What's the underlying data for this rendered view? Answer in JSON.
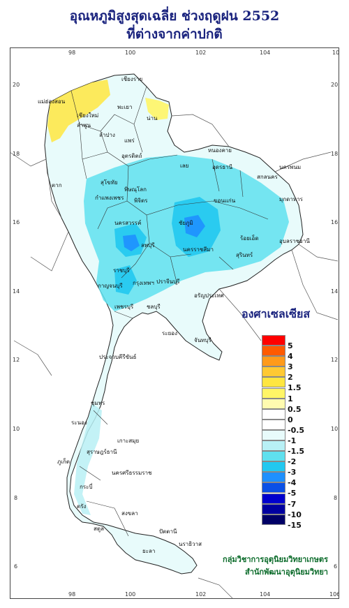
{
  "title_line1": "อุณหภูมิสูงสุดเฉลี่ย ช่วงฤดูฝน 2552",
  "title_line2": "ที่ต่างจากค่าปกติ",
  "unit_label": "องศาเซลเซียส",
  "credit_line1": "กลุ่มวิชาการอุตุนิยมวิทยาเกษตร",
  "credit_line2": "สำนักพัฒนาอุตุนิยมวิทยา",
  "axes": {
    "lon_ticks": [
      "98",
      "100",
      "102",
      "104",
      "106"
    ],
    "lat_ticks": [
      "20",
      "18",
      "16",
      "14",
      "12",
      "10",
      "8",
      "6"
    ]
  },
  "legend": {
    "classes": [
      {
        "label": "5",
        "color": "#ff0000"
      },
      {
        "label": "4",
        "color": "#ff5a00"
      },
      {
        "label": "3",
        "color": "#ff9a1a"
      },
      {
        "label": "2",
        "color": "#ffc933"
      },
      {
        "label": "1.5",
        "color": "#ffe640"
      },
      {
        "label": "1",
        "color": "#fff566"
      },
      {
        "label": "0.5",
        "color": "#fffbb0"
      },
      {
        "label": "0",
        "color": "#ffffff"
      },
      {
        "label": "-0.5",
        "color": "#ffffff"
      },
      {
        "label": "-1",
        "color": "#e8fbfb"
      },
      {
        "label": "-1.5",
        "color": "#b8f0f5"
      },
      {
        "label": "-2",
        "color": "#5fe0ee"
      },
      {
        "label": "-3",
        "color": "#22c8f0"
      },
      {
        "label": "-4",
        "color": "#1e90ff"
      },
      {
        "label": "-5",
        "color": "#0a50e6"
      },
      {
        "label": "-7",
        "color": "#0000cd"
      },
      {
        "label": "-10",
        "color": "#0000a0"
      },
      {
        "label": "-15",
        "color": "#000066"
      }
    ]
  },
  "places": [
    {
      "name": "เชียงราย"
    },
    {
      "name": "เชียงใหม่"
    },
    {
      "name": "แม่ฮ่องสอน"
    },
    {
      "name": "ลำพูน"
    },
    {
      "name": "ลำปาง"
    },
    {
      "name": "พะเยา"
    },
    {
      "name": "น่าน"
    },
    {
      "name": "แพร่"
    },
    {
      "name": "อุตรดิตถ์"
    },
    {
      "name": "ตาก"
    },
    {
      "name": "สุโขทัย"
    },
    {
      "name": "พิษณุโลก"
    },
    {
      "name": "กำแพงเพชร"
    },
    {
      "name": "พิจิตร"
    },
    {
      "name": "เลย"
    },
    {
      "name": "หนองคาย"
    },
    {
      "name": "อุดรธานี"
    },
    {
      "name": "นครพนม"
    },
    {
      "name": "สกลนคร"
    },
    {
      "name": "มุกดาหาร"
    },
    {
      "name": "ขอนแก่น"
    },
    {
      "name": "ชัยภูมิ"
    },
    {
      "name": "นครสวรรค์"
    },
    {
      "name": "ลพบุรี"
    },
    {
      "name": "นครราชสีมา"
    },
    {
      "name": "ร้อยเอ็ด"
    },
    {
      "name": "อุบลราชธานี"
    },
    {
      "name": "สุรินทร์"
    },
    {
      "name": "กาญจนบุรี"
    },
    {
      "name": "ราชบุรี"
    },
    {
      "name": "กรุงเทพฯ"
    },
    {
      "name": "ชลบุรี"
    },
    {
      "name": "ระยอง"
    },
    {
      "name": "จันทบุรี"
    },
    {
      "name": "ปราจีนบุรี"
    },
    {
      "name": "อรัญประเทศ"
    },
    {
      "name": "เพชรบุรี"
    },
    {
      "name": "ประจวบคีรีขันธ์"
    },
    {
      "name": "ชุมพร"
    },
    {
      "name": "ระนอง"
    },
    {
      "name": "สุราษฎร์ธานี"
    },
    {
      "name": "เกาะสมุย"
    },
    {
      "name": "ภูเก็ต"
    },
    {
      "name": "นครศรีธรรมราช"
    },
    {
      "name": "กระบี่"
    },
    {
      "name": "ตรัง"
    },
    {
      "name": "สงขลา"
    },
    {
      "name": "ปัตตานี"
    },
    {
      "name": "นราธิวาส"
    },
    {
      "name": "สตูล"
    },
    {
      "name": "ยะลา"
    }
  ]
}
